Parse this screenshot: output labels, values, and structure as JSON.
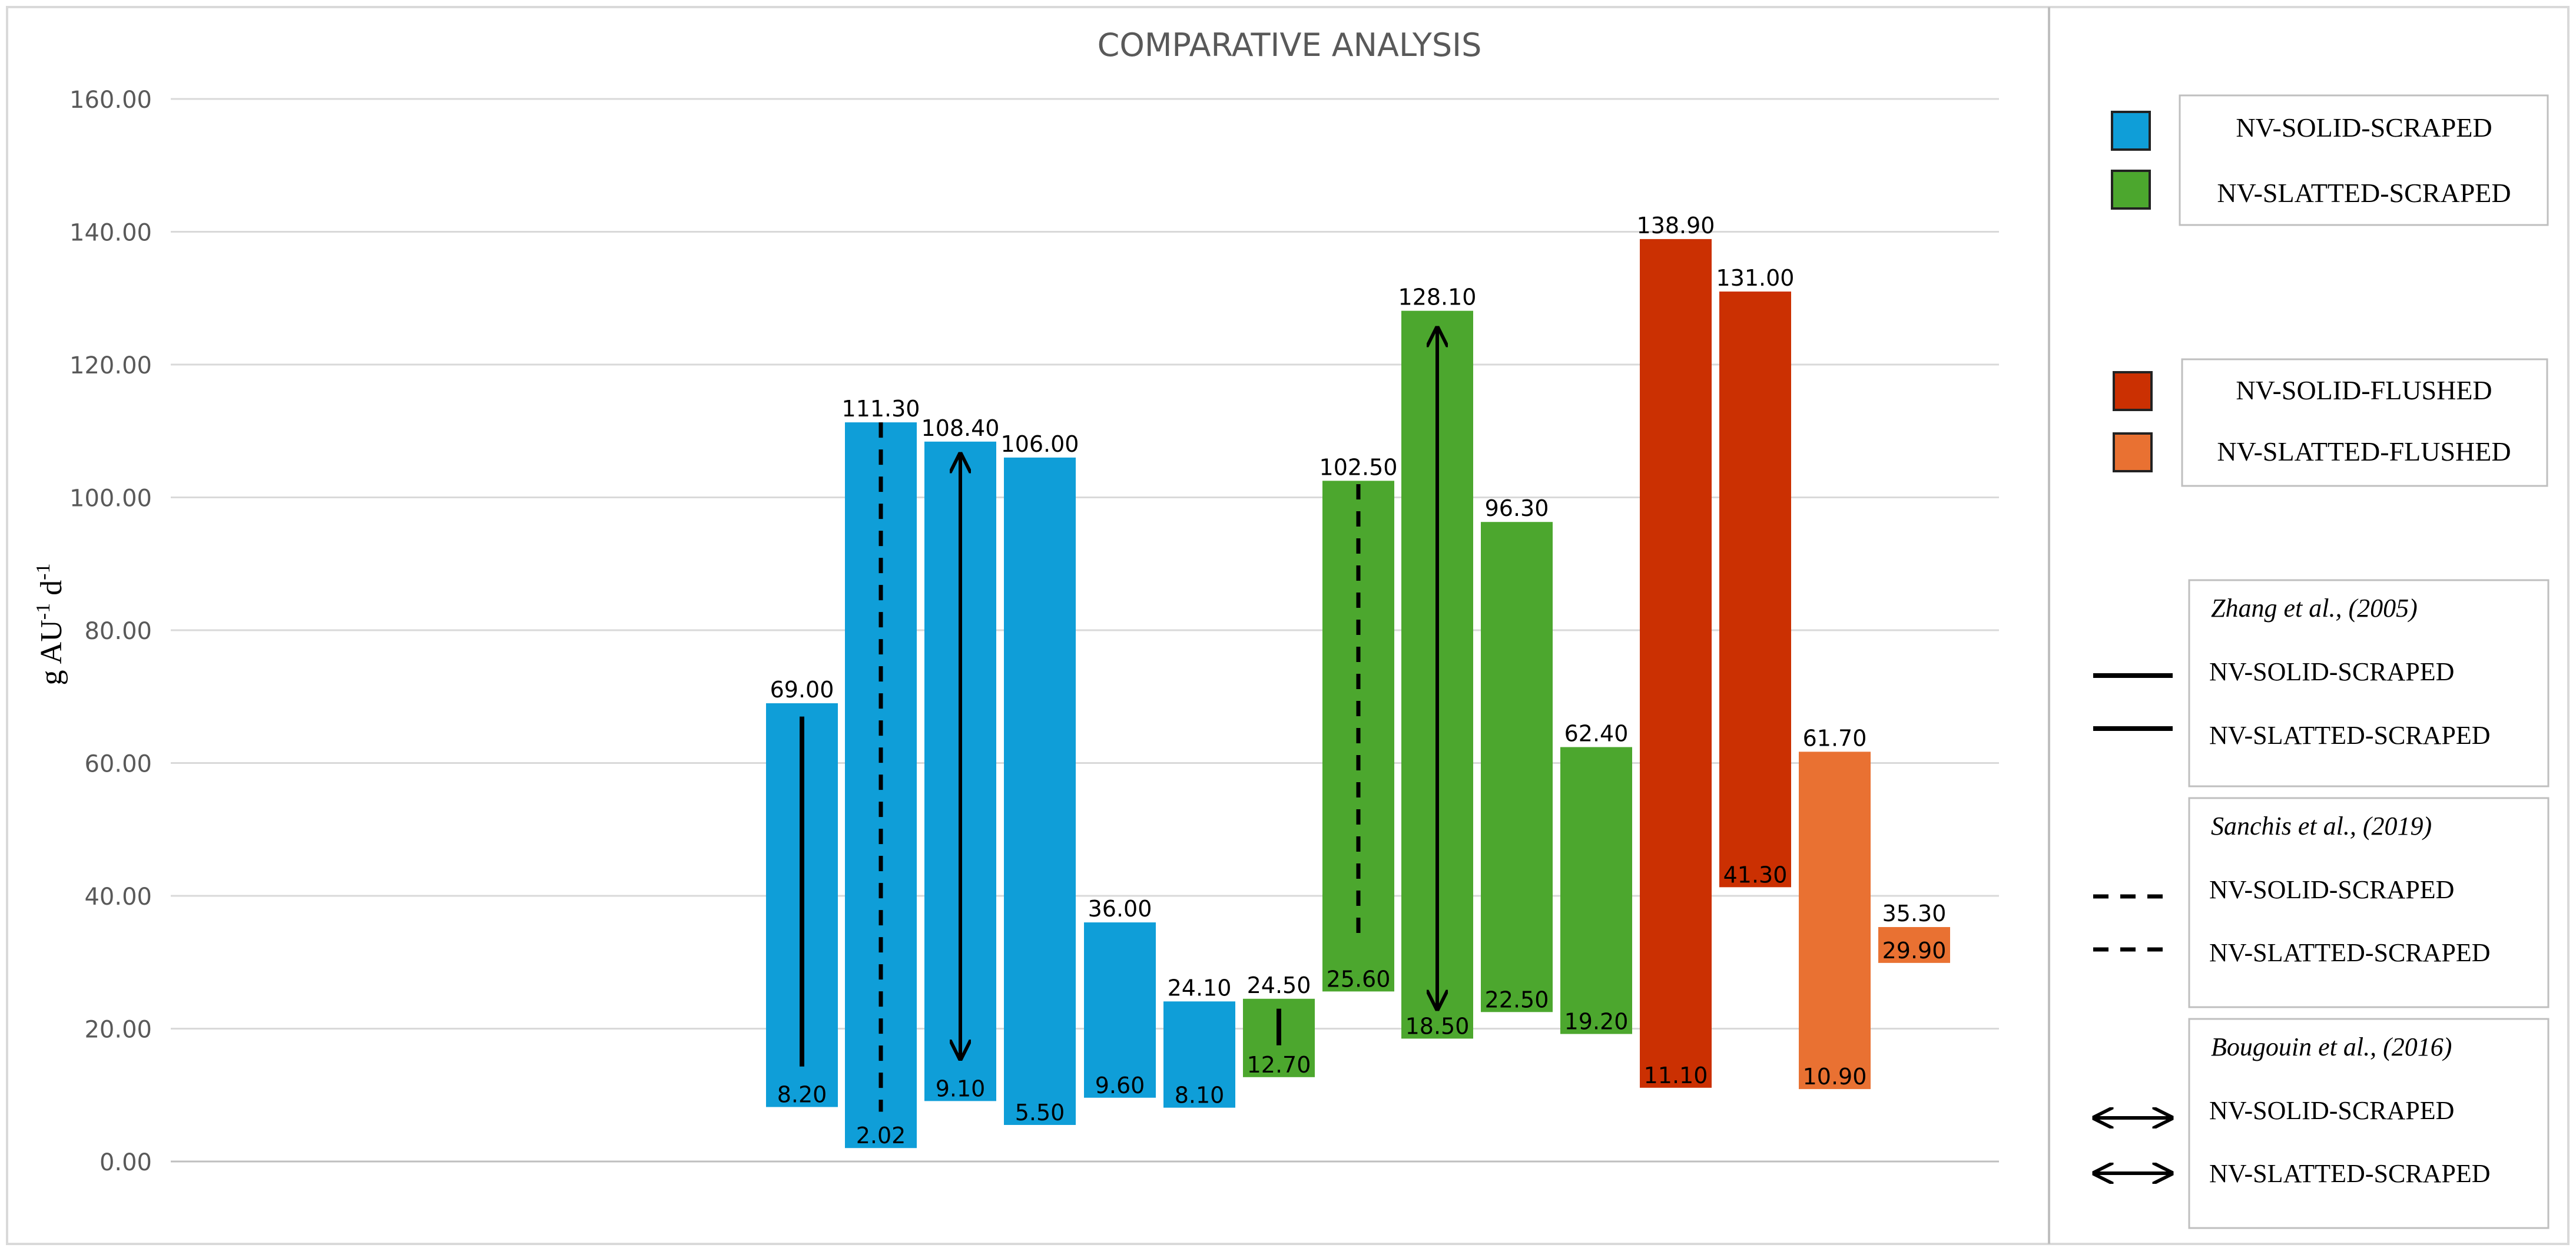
{
  "chart_data": {
    "type": "floating-bar",
    "title": "COMPARATIVE ANALYSIS",
    "ylabel": {
      "base": "g  AU",
      "sup1": "-1",
      "mid": " d",
      "sup2": "-1"
    },
    "ylim": [
      0,
      160
    ],
    "yticks": [
      "0.00",
      "20.00",
      "40.00",
      "60.00",
      "80.00",
      "100.00",
      "120.00",
      "140.00",
      "160.00"
    ],
    "ytick_values": [
      0,
      20,
      40,
      60,
      80,
      100,
      120,
      140,
      160
    ],
    "grid": true,
    "bars": [
      {
        "low": 8.2,
        "high": 69.0,
        "low_label": "8.20",
        "high_label": "69.00",
        "group": "nv_solid_scraped",
        "study": "zhang"
      },
      {
        "low": 2.02,
        "high": 111.3,
        "low_label": "2.02",
        "high_label": "111.30",
        "group": "nv_solid_scraped",
        "study": "sanchis"
      },
      {
        "low": 9.1,
        "high": 108.4,
        "low_label": "9.10",
        "high_label": "108.40",
        "group": "nv_solid_scraped",
        "study": "bougouin"
      },
      {
        "low": 5.5,
        "high": 106.0,
        "low_label": "5.50",
        "high_label": "106.00",
        "group": "nv_solid_scraped",
        "study": ""
      },
      {
        "low": 9.6,
        "high": 36.0,
        "low_label": "9.60",
        "high_label": "36.00",
        "group": "nv_solid_scraped",
        "study": ""
      },
      {
        "low": 8.1,
        "high": 24.1,
        "low_label": "8.10",
        "high_label": "24.10",
        "group": "nv_solid_scraped",
        "study": ""
      },
      {
        "low": 12.7,
        "high": 24.5,
        "low_label": "12.70",
        "high_label": "24.50",
        "group": "nv_slatted_scraped",
        "study": "zhang"
      },
      {
        "low": 25.6,
        "high": 102.5,
        "low_label": "25.60",
        "high_label": "102.50",
        "group": "nv_slatted_scraped",
        "study": "sanchis"
      },
      {
        "low": 18.5,
        "high": 128.1,
        "low_label": "18.50",
        "high_label": "128.10",
        "group": "nv_slatted_scraped",
        "study": "bougouin"
      },
      {
        "low": 22.5,
        "high": 96.3,
        "low_label": "22.50",
        "high_label": "96.30",
        "group": "nv_slatted_scraped",
        "study": ""
      },
      {
        "low": 19.2,
        "high": 62.4,
        "low_label": "19.20",
        "high_label": "62.40",
        "group": "nv_slatted_scraped",
        "study": ""
      },
      {
        "low": 11.1,
        "high": 138.9,
        "low_label": "11.10",
        "high_label": "138.90",
        "group": "nv_solid_flushed",
        "study": ""
      },
      {
        "low": 41.3,
        "high": 131.0,
        "low_label": "41.30",
        "high_label": "131.00",
        "group": "nv_solid_flushed",
        "study": ""
      },
      {
        "low": 10.9,
        "high": 61.7,
        "low_label": "10.90",
        "high_label": "61.70",
        "group": "nv_slatted_flushed",
        "study": ""
      },
      {
        "low": 29.9,
        "high": 35.3,
        "low_label": "29.90",
        "high_label": "35.30",
        "group": "nv_slatted_flushed",
        "study": ""
      }
    ],
    "colors": {
      "nv_solid_scraped": "#0f9ed8",
      "nv_slatted_scraped": "#4ca72e",
      "nv_solid_flushed": "#cb3002",
      "nv_slatted_flushed": "#e97132"
    },
    "study_markers": {
      "zhang": {
        "low": 14.3,
        "high": 67.0
      },
      "sanchis": {
        "low": 7.5,
        "high": 111.3
      },
      "bougouin": {
        "low": 15.5,
        "high": 106.5
      }
    },
    "slatted_markers": {
      "zhang": {
        "low": 17.5,
        "high": 23.0
      },
      "sanchis": {
        "low": 33.5,
        "high": 102.0
      },
      "bougouin": {
        "low": 23.0,
        "high": 125.5
      }
    }
  },
  "legend": {
    "color_box_1": {
      "items": [
        {
          "label": "NV-SOLID-SCRAPED",
          "color": "#0f9ed8"
        },
        {
          "label": "NV-SLATTED-SCRAPED",
          "color": "#4ca72e"
        }
      ]
    },
    "color_box_2": {
      "items": [
        {
          "label": "NV-SOLID-FLUSHED",
          "color": "#cb3002"
        },
        {
          "label": "NV-SLATTED-FLUSHED",
          "color": "#e97132"
        }
      ]
    },
    "studies": [
      {
        "title": "Zhang et al., (2005)",
        "line": "solid",
        "items": [
          "NV-SOLID-SCRAPED",
          "NV-SLATTED-SCRAPED"
        ]
      },
      {
        "title": "Sanchis et al., (2019)",
        "line": "dashed",
        "items": [
          "NV-SOLID-SCRAPED",
          "NV-SLATTED-SCRAPED"
        ]
      },
      {
        "title": "Bougouin et al., (2016)",
        "line": "double-arrow",
        "items": [
          "NV-SOLID-SCRAPED",
          "NV-SLATTED-SCRAPED"
        ]
      }
    ]
  }
}
